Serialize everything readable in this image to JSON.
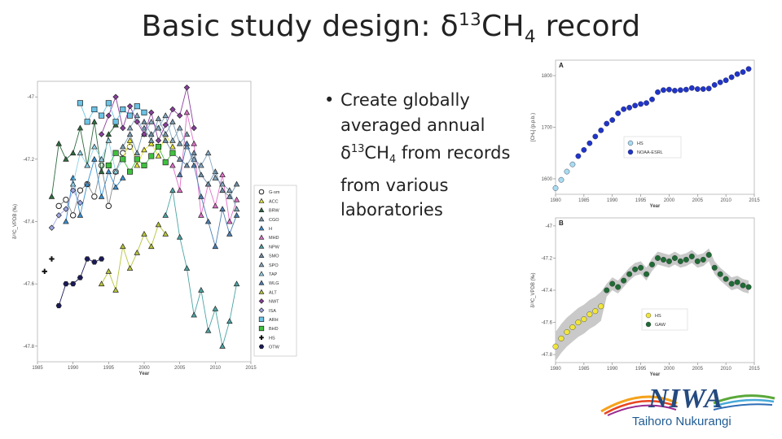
{
  "slide": {
    "title_main": "Basic study design: δ",
    "title_sup": "13",
    "title_mid": "CH",
    "title_sub": "4",
    "title_end": " record",
    "bullet_pre": "Create globally averaged annual δ",
    "bullet_sup": "13",
    "bullet_mid": "CH",
    "bullet_sub": "4",
    "bullet_post": " from records from various laboratories"
  },
  "logo": {
    "name": "NIWA",
    "tagline": "Taihoro Nukurangi",
    "swoosh_colors": [
      "#f5a21a",
      "#e8451f",
      "#9a2b8f",
      "#2f6db5",
      "#47a9d9",
      "#5aa83a"
    ]
  },
  "chart_data": [
    {
      "type": "scatter",
      "title": "",
      "xlabel": "Year",
      "ylabel": "δ¹³C_VPDB (‰)",
      "xlim": [
        1985,
        2015
      ],
      "ylim": [
        -47.85,
        -46.95
      ],
      "yinvert": true,
      "xticks": [
        "1985",
        "1990",
        "1995",
        "2000",
        "2005",
        "2010",
        "2015"
      ],
      "yticks": [
        "-47",
        "-47.2",
        "-47.4",
        "-47.6",
        "-47.8"
      ],
      "legend_placement": "right",
      "series": [
        {
          "name": "G-sm",
          "color": "#ffffff",
          "marker": "circle",
          "x": [
            1988,
            1989,
            1990,
            1991,
            1992,
            1993,
            1994,
            1995,
            1996,
            1997,
            1998
          ],
          "y": [
            -47.35,
            -47.33,
            -47.38,
            -47.3,
            -47.28,
            -47.32,
            -47.22,
            -47.35,
            -47.24,
            -47.18,
            -47.16
          ]
        },
        {
          "name": "ACC",
          "color": "#e6e635",
          "marker": "triangle",
          "x": [
            1996,
            1997,
            1998,
            1999,
            2000,
            2001,
            2002,
            2003,
            2004
          ],
          "y": [
            -47.18,
            -47.2,
            -47.14,
            -47.22,
            -47.17,
            -47.15,
            -47.19,
            -47.12,
            -47.16
          ]
        },
        {
          "name": "BRW",
          "color": "#2e6b3f",
          "marker": "triangle",
          "x": [
            1987,
            1988,
            1989,
            1990,
            1991,
            1992,
            1993,
            1994,
            1995,
            1996
          ],
          "y": [
            -47.32,
            -47.15,
            -47.2,
            -47.18,
            -47.1,
            -47.22,
            -47.08,
            -47.24,
            -47.12,
            -47.09
          ]
        },
        {
          "name": "CGO",
          "color": "#7a9bb0",
          "marker": "triangle",
          "x": [
            1997,
            1998,
            1999,
            2000,
            2001,
            2002,
            2003,
            2004,
            2005,
            2006
          ],
          "y": [
            -47.16,
            -47.12,
            -47.18,
            -47.1,
            -47.14,
            -47.07,
            -47.12,
            -47.08,
            -47.15,
            -47.12
          ]
        },
        {
          "name": "H",
          "color": "#3a8fd0",
          "marker": "triangle",
          "x": [
            1989,
            1990,
            1991,
            1992,
            1993,
            1994,
            1995,
            1996,
            1997
          ],
          "y": [
            -47.4,
            -47.26,
            -47.38,
            -47.28,
            -47.2,
            -47.32,
            -47.24,
            -47.29,
            -47.26
          ]
        },
        {
          "name": "MHD",
          "color": "#e070c8",
          "marker": "triangle",
          "x": [
            2004,
            2005,
            2006,
            2007,
            2008,
            2009,
            2010,
            2011,
            2012,
            2013
          ],
          "y": [
            -47.22,
            -47.3,
            -47.05,
            -47.15,
            -47.38,
            -47.28,
            -47.35,
            -47.25,
            -47.4,
            -47.33
          ]
        },
        {
          "name": "NPW",
          "color": "#4ba3a3",
          "marker": "triangle",
          "x": [
            2003,
            2004,
            2005,
            2006,
            2007,
            2008,
            2009,
            2010,
            2011,
            2012,
            2013
          ],
          "y": [
            -47.38,
            -47.3,
            -47.45,
            -47.55,
            -47.7,
            -47.62,
            -47.75,
            -47.68,
            -47.8,
            -47.72,
            -47.6
          ]
        },
        {
          "name": "SMO",
          "color": "#6f8fa8",
          "marker": "triangle",
          "x": [
            2000,
            2001,
            2002,
            2003,
            2004,
            2005,
            2006,
            2007,
            2008,
            2009,
            2010,
            2011,
            2012,
            2013
          ],
          "y": [
            -47.08,
            -47.12,
            -47.1,
            -47.14,
            -47.18,
            -47.2,
            -47.22,
            -47.18,
            -47.25,
            -47.28,
            -47.24,
            -47.3,
            -47.32,
            -47.28
          ]
        },
        {
          "name": "SPO",
          "color": "#86a9c2",
          "marker": "triangle",
          "x": [
            1998,
            1999,
            2000,
            2001,
            2002,
            2003,
            2004,
            2005,
            2006,
            2007,
            2008,
            2009,
            2010,
            2011,
            2012,
            2013
          ],
          "y": [
            -47.1,
            -47.06,
            -47.12,
            -47.08,
            -47.1,
            -47.06,
            -47.14,
            -47.1,
            -47.16,
            -47.2,
            -47.22,
            -47.18,
            -47.26,
            -47.28,
            -47.3,
            -47.36
          ]
        },
        {
          "name": "TAP",
          "color": "#8ed1e8",
          "marker": "triangle",
          "x": [
            1990,
            1991,
            1992,
            1993,
            1994,
            1995,
            1996,
            1997
          ],
          "y": [
            -47.28,
            -47.18,
            -47.22,
            -47.16,
            -47.2,
            -47.14,
            -47.24,
            -47.2
          ]
        },
        {
          "name": "WLG",
          "color": "#4c7fb5",
          "marker": "triangle",
          "x": [
            2005,
            2006,
            2007,
            2008,
            2009,
            2010,
            2011,
            2012,
            2013
          ],
          "y": [
            -47.25,
            -47.15,
            -47.22,
            -47.32,
            -47.4,
            -47.48,
            -47.36,
            -47.44,
            -47.38
          ]
        },
        {
          "name": "ALT",
          "color": "#b8c43a",
          "marker": "triangle",
          "x": [
            1994,
            1995,
            1996,
            1997,
            1998,
            1999,
            2000,
            2001,
            2002,
            2003
          ],
          "y": [
            -47.6,
            -47.56,
            -47.62,
            -47.48,
            -47.55,
            -47.5,
            -47.44,
            -47.48,
            -47.41,
            -47.44
          ]
        },
        {
          "name": "NWT",
          "color": "#8b3f9e",
          "marker": "diamond",
          "x": [
            1994,
            1995,
            1996,
            1997,
            1998,
            1999,
            2000,
            2001,
            2002,
            2003,
            2004,
            2005,
            2006,
            2007
          ],
          "y": [
            -47.12,
            -47.06,
            -47.0,
            -47.1,
            -47.03,
            -47.08,
            -47.12,
            -47.05,
            -47.14,
            -47.09,
            -47.04,
            -47.06,
            -46.97,
            -47.1
          ]
        },
        {
          "name": "ISA",
          "color": "#a0a8e6",
          "marker": "diamond",
          "x": [
            1987,
            1988,
            1989,
            1990,
            1991
          ],
          "y": [
            -47.42,
            -47.38,
            -47.36,
            -47.3,
            -47.34
          ]
        },
        {
          "name": "ARH",
          "color": "#6cc3e6",
          "marker": "square",
          "x": [
            1991,
            1992,
            1993,
            1994,
            1995,
            1996,
            1997,
            1998,
            1999,
            2000
          ],
          "y": [
            -47.02,
            -47.08,
            -47.04,
            -47.06,
            -47.02,
            -47.08,
            -47.04,
            -47.06,
            -47.03,
            -47.05
          ]
        },
        {
          "name": "BHD",
          "color": "#3fc23f",
          "marker": "square",
          "x": [
            1995,
            1996,
            1997,
            1998,
            1999,
            2000,
            2001,
            2002,
            2003,
            2004
          ],
          "y": [
            -47.22,
            -47.18,
            -47.2,
            -47.24,
            -47.2,
            -47.22,
            -47.19,
            -47.16,
            -47.21,
            -47.18
          ]
        },
        {
          "name": "HS",
          "color": "#111111",
          "marker": "plus",
          "x": [
            1986,
            1987
          ],
          "y": [
            -47.56,
            -47.52
          ]
        },
        {
          "name": "OTW",
          "color": "#1a1a5a",
          "marker": "hexagon",
          "x": [
            1988,
            1989,
            1990,
            1991,
            1992,
            1993,
            1994
          ],
          "y": [
            -47.67,
            -47.6,
            -47.6,
            -47.58,
            -47.52,
            -47.53,
            -47.52
          ]
        }
      ]
    },
    {
      "type": "scatter",
      "panel_label": "A",
      "title": "",
      "xlabel": "Year",
      "ylabel": "[CH₄] (p.p.b.)",
      "xlim": [
        1980,
        2015
      ],
      "ylim": [
        1570,
        1830
      ],
      "xticks": [
        "1980",
        "1985",
        "1990",
        "1995",
        "2000",
        "2005",
        "2010",
        "2015"
      ],
      "yticks": [
        "1600",
        "1700",
        "1800"
      ],
      "legend_placement": "right",
      "series": [
        {
          "name": "HS",
          "color": "#a9dcef",
          "x": [
            1980,
            1981,
            1982,
            1983
          ],
          "y": [
            1582,
            1598,
            1614,
            1628
          ]
        },
        {
          "name": "NOAA-ESRL",
          "color": "#2035c8",
          "x": [
            1984,
            1985,
            1986,
            1987,
            1988,
            1989,
            1990,
            1991,
            1992,
            1993,
            1994,
            1995,
            1996,
            1997,
            1998,
            1999,
            2000,
            2001,
            2002,
            2003,
            2004,
            2005,
            2006,
            2007,
            2008,
            2009,
            2010,
            2011,
            2012,
            2013,
            2014
          ],
          "y": [
            1644,
            1656,
            1669,
            1682,
            1694,
            1707,
            1714,
            1727,
            1735,
            1738,
            1742,
            1745,
            1747,
            1754,
            1768,
            1772,
            1773,
            1771,
            1772,
            1773,
            1776,
            1774,
            1774,
            1775,
            1782,
            1787,
            1791,
            1797,
            1803,
            1807,
            1813
          ]
        }
      ]
    },
    {
      "type": "scatter",
      "panel_label": "B",
      "title": "",
      "xlabel": "Year",
      "ylabel": "δ¹³C_VPDB (‰)",
      "xlim": [
        1980,
        2015
      ],
      "ylim": [
        -47.85,
        -46.95
      ],
      "yinvert": true,
      "xticks": [
        "1980",
        "1985",
        "1990",
        "1995",
        "2000",
        "2005",
        "2010",
        "2015"
      ],
      "yticks": [
        "-47",
        "-47.2",
        "-47.4",
        "-47.6",
        "-47.8"
      ],
      "legend_placement": "bottom-right",
      "series": [
        {
          "name": "HS",
          "color": "#f0e63a",
          "x": [
            1980,
            1981,
            1982,
            1983,
            1984,
            1985,
            1986,
            1987,
            1988
          ],
          "y": [
            -47.75,
            -47.7,
            -47.66,
            -47.63,
            -47.6,
            -47.58,
            -47.55,
            -47.53,
            -47.5
          ]
        },
        {
          "name": "GAW",
          "color": "#1f6b35",
          "x": [
            1989,
            1990,
            1991,
            1992,
            1993,
            1994,
            1995,
            1996,
            1997,
            1998,
            1999,
            2000,
            2001,
            2002,
            2003,
            2004,
            2005,
            2006,
            2007,
            2008,
            2009,
            2010,
            2011,
            2012,
            2013,
            2014
          ],
          "y": [
            -47.4,
            -47.36,
            -47.38,
            -47.34,
            -47.3,
            -47.27,
            -47.26,
            -47.3,
            -47.24,
            -47.2,
            -47.21,
            -47.22,
            -47.2,
            -47.22,
            -47.21,
            -47.19,
            -47.22,
            -47.21,
            -47.18,
            -47.26,
            -47.3,
            -47.33,
            -47.36,
            -47.35,
            -47.37,
            -47.38
          ]
        }
      ]
    }
  ]
}
